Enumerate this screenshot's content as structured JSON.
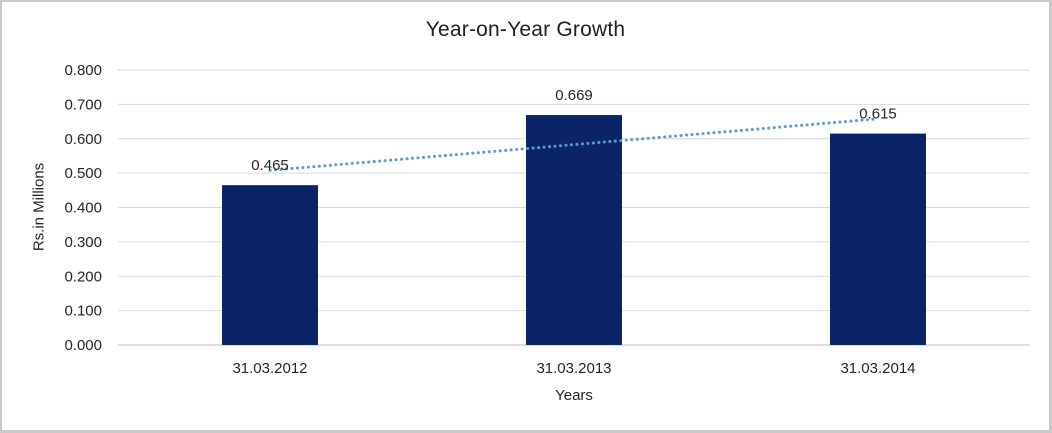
{
  "window": {
    "background_color": "#ffffff",
    "border_color": "#c9c9c9"
  },
  "chart_data": {
    "type": "bar",
    "title": "Year-on-Year Growth",
    "xlabel": "Years",
    "ylabel": "Rs.in Millions",
    "categories": [
      "31.03.2012",
      "31.03.2013",
      "31.03.2014"
    ],
    "values": [
      0.465,
      0.669,
      0.615
    ],
    "data_labels": [
      "0.465",
      "0.669",
      "0.615"
    ],
    "ylim": [
      0,
      0.8
    ],
    "ytick_step": 0.1,
    "ytick_labels": [
      "0.000",
      "0.100",
      "0.200",
      "0.300",
      "0.400",
      "0.500",
      "0.600",
      "0.700",
      "0.800"
    ],
    "grid": true,
    "legend": "none",
    "bar_color": "#0b2466",
    "gridline_color": "#d9d9d9",
    "axis_line_color": "#bfbfbf",
    "label_color": "#262626",
    "trendline": {
      "type": "linear",
      "style": "dotted",
      "color": "#5b9bd5",
      "y_start": 0.508,
      "y_end": 0.658
    }
  }
}
